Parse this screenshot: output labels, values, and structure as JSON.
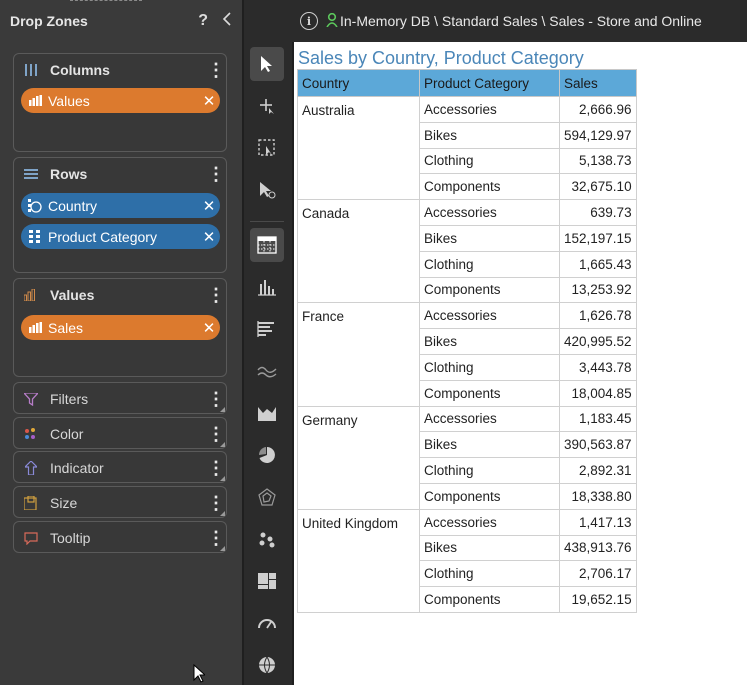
{
  "drop_zones": {
    "title": "Drop Zones",
    "help_label": "?",
    "columns": {
      "label": "Columns",
      "pills": [
        {
          "label": "Values"
        }
      ]
    },
    "rows": {
      "label": "Rows",
      "pills": [
        {
          "label": "Country"
        },
        {
          "label": "Product Category"
        }
      ]
    },
    "values": {
      "label": "Values",
      "pills": [
        {
          "label": "Sales"
        }
      ]
    },
    "filters": {
      "label": "Filters"
    },
    "color": {
      "label": "Color"
    },
    "indicator": {
      "label": "Indicator"
    },
    "size": {
      "label": "Size"
    },
    "tooltip": {
      "label": "Tooltip"
    }
  },
  "breadcrumb": {
    "path": "In-Memory DB \\ Standard Sales \\ Sales - Store and Online"
  },
  "report": {
    "title": "Sales by Country, Product Category",
    "headers": [
      "Country",
      "Product Category",
      "Sales"
    ],
    "groups": [
      {
        "country": "Australia",
        "rows": [
          {
            "category": "Accessories",
            "sales": "2,666.96"
          },
          {
            "category": "Bikes",
            "sales": "594,129.97"
          },
          {
            "category": "Clothing",
            "sales": "5,138.73"
          },
          {
            "category": "Components",
            "sales": "32,675.10"
          }
        ]
      },
      {
        "country": "Canada",
        "rows": [
          {
            "category": "Accessories",
            "sales": "639.73"
          },
          {
            "category": "Bikes",
            "sales": "152,197.15"
          },
          {
            "category": "Clothing",
            "sales": "1,665.43"
          },
          {
            "category": "Components",
            "sales": "13,253.92"
          }
        ]
      },
      {
        "country": "France",
        "rows": [
          {
            "category": "Accessories",
            "sales": "1,626.78"
          },
          {
            "category": "Bikes",
            "sales": "420,995.52"
          },
          {
            "category": "Clothing",
            "sales": "3,443.78"
          },
          {
            "category": "Components",
            "sales": "18,004.85"
          }
        ]
      },
      {
        "country": "Germany",
        "rows": [
          {
            "category": "Accessories",
            "sales": "1,183.45"
          },
          {
            "category": "Bikes",
            "sales": "390,563.87"
          },
          {
            "category": "Clothing",
            "sales": "2,892.31"
          },
          {
            "category": "Components",
            "sales": "18,338.80"
          }
        ]
      },
      {
        "country": "United Kingdom",
        "rows": [
          {
            "category": "Accessories",
            "sales": "1,417.13"
          },
          {
            "category": "Bikes",
            "sales": "438,913.76"
          },
          {
            "category": "Clothing",
            "sales": "2,706.17"
          },
          {
            "category": "Components",
            "sales": "19,652.15"
          }
        ]
      }
    ]
  },
  "toolbar": {
    "tools": [
      "select-pointer-icon",
      "add-point-icon",
      "marquee-select-icon",
      "drill-pointer-icon",
      "table-icon",
      "column-chart-icon",
      "bar-chart-icon",
      "line-chart-icon",
      "area-chart-icon",
      "pie-chart-icon",
      "radar-chart-icon",
      "scatter-chart-icon",
      "treemap-icon",
      "gauge-icon",
      "map-icon"
    ],
    "active": "table-icon"
  },
  "colors": {
    "orange_pill": "#dc7a2e",
    "blue_pill": "#2e6fa8",
    "header_blue": "#5ca8d8",
    "title_blue": "#4a86b8"
  }
}
